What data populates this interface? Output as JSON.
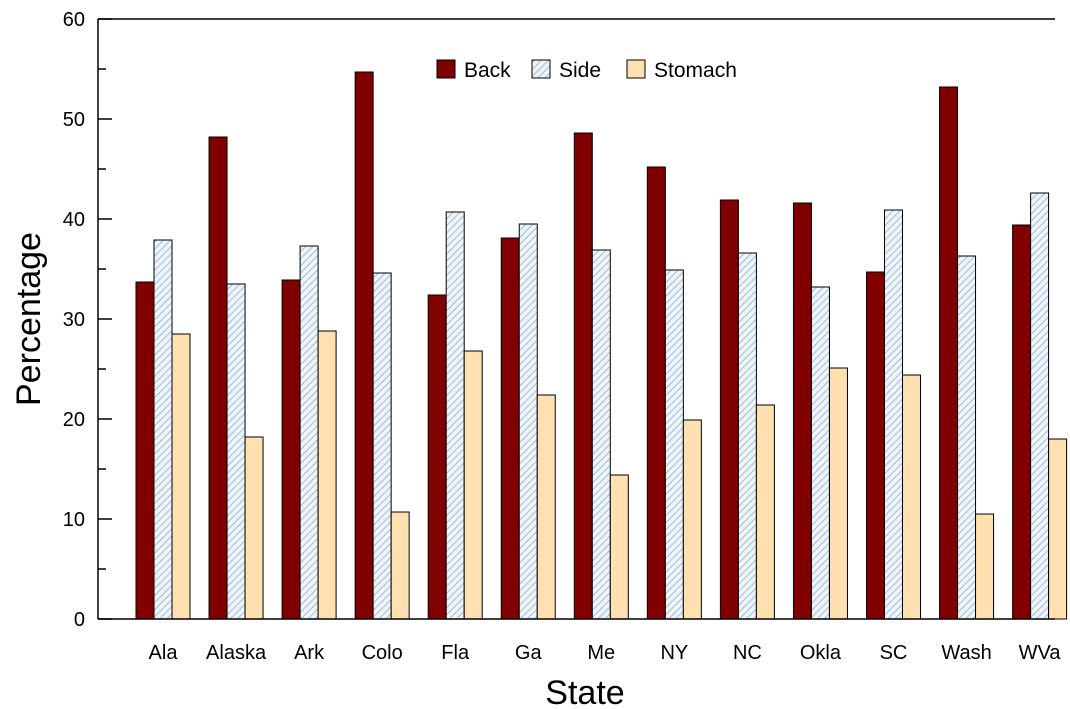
{
  "chart_data": {
    "type": "bar",
    "xlabel": "State",
    "ylabel": "Percentage",
    "ylim": [
      0,
      60
    ],
    "yticks": [
      0,
      10,
      20,
      30,
      40,
      50,
      60
    ],
    "categories": [
      "Ala",
      "Alaska",
      "Ark",
      "Colo",
      "Fla",
      "Ga",
      "Me",
      "NY",
      "NC",
      "Okla",
      "SC",
      "Wash",
      "WVa"
    ],
    "series": [
      {
        "name": "Back",
        "color": "#800000",
        "pattern": "solid",
        "values": [
          33.7,
          48.2,
          33.9,
          54.7,
          32.4,
          38.1,
          48.6,
          45.2,
          41.9,
          41.6,
          34.7,
          53.2,
          39.4
        ]
      },
      {
        "name": "Side",
        "color": "#dfe9f3",
        "pattern": "diagonal-hatch",
        "values": [
          37.9,
          33.5,
          37.3,
          34.6,
          40.7,
          39.5,
          36.9,
          34.9,
          36.6,
          33.2,
          40.9,
          36.3,
          42.6
        ]
      },
      {
        "name": "Stomach",
        "color": "#ffe0b0",
        "pattern": "solid",
        "values": [
          28.5,
          18.2,
          28.8,
          10.7,
          26.8,
          22.4,
          14.4,
          19.9,
          21.4,
          25.1,
          24.4,
          10.5,
          18.0
        ]
      }
    ],
    "legend_position": "top-center",
    "grid": false
  }
}
